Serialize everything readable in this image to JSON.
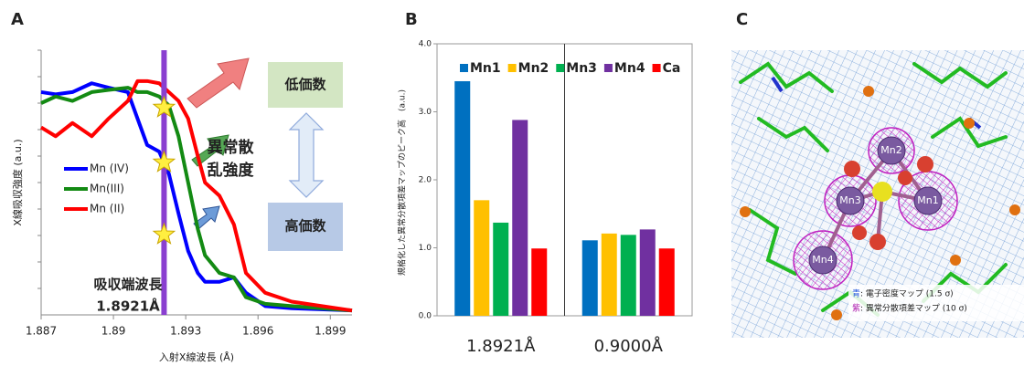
{
  "chart_data": [
    {
      "type": "line",
      "panel_label": "A",
      "x_label": "入射X線波長 (Å)",
      "y_label": "X線吸収強度 (a.u.)",
      "x": [
        1.887,
        1.8876,
        1.8883,
        1.8891,
        1.8898,
        1.8906,
        1.891,
        1.8914,
        1.8919,
        1.8923,
        1.8927,
        1.8931,
        1.8935,
        1.8938,
        1.8944,
        1.895,
        1.8955,
        1.8963,
        1.8974,
        1.8999
      ],
      "xlim": [
        1.887,
        1.8999
      ],
      "xticks": [
        1.887,
        1.89,
        1.893,
        1.896,
        1.899
      ],
      "ylim": [
        0,
        1.2
      ],
      "series": [
        {
          "name": "Mn (IV)",
          "color": "#0000ff",
          "values": [
            1.01,
            1.0,
            1.01,
            1.05,
            1.03,
            1.01,
            0.89,
            0.77,
            0.74,
            0.64,
            0.46,
            0.29,
            0.19,
            0.15,
            0.15,
            0.17,
            0.1,
            0.04,
            0.03,
            0.02
          ]
        },
        {
          "name": "Mn(III)",
          "color": "#138a13",
          "values": [
            0.96,
            0.99,
            0.97,
            1.01,
            1.02,
            1.03,
            1.01,
            1.01,
            0.99,
            0.95,
            0.81,
            0.6,
            0.39,
            0.27,
            0.19,
            0.17,
            0.08,
            0.05,
            0.04,
            0.02
          ]
        },
        {
          "name": "Mn (II)",
          "color": "#ff0000",
          "values": [
            0.85,
            0.81,
            0.87,
            0.81,
            0.89,
            0.97,
            1.06,
            1.06,
            1.05,
            1.01,
            0.97,
            0.89,
            0.72,
            0.6,
            0.54,
            0.41,
            0.19,
            0.1,
            0.06,
            0.02
          ]
        }
      ],
      "edge_x": 1.8921,
      "edge_title": "吸収端波長",
      "edge_label": "1.8921Å",
      "low_label": "低価数",
      "high_label": "高価数",
      "anomalous_label": [
        "異常散",
        "乱強度"
      ]
    },
    {
      "type": "bar",
      "panel_label": "B",
      "y_label": "規格化した異常分散項差マップのピーク高　(a.u.)",
      "categories": [
        "1.8921Å",
        "0.9000Å"
      ],
      "series": [
        {
          "name": "Mn1",
          "color": "#0070c0",
          "values": [
            3.45,
            1.11
          ]
        },
        {
          "name": "Mn2",
          "color": "#ffc000",
          "values": [
            1.7,
            1.21
          ]
        },
        {
          "name": "Mn3",
          "color": "#00b050",
          "values": [
            1.37,
            1.19
          ]
        },
        {
          "name": "Mn4",
          "color": "#7030a0",
          "values": [
            2.88,
            1.27
          ]
        },
        {
          "name": "Ca",
          "color": "#ff0000",
          "values": [
            0.99,
            0.99
          ]
        }
      ],
      "ylim": [
        0,
        4.0
      ],
      "yticks": [
        {
          "value": 0,
          "label": "0.0"
        },
        {
          "value": 1,
          "label": "1.0"
        },
        {
          "value": 2,
          "label": "2.0"
        },
        {
          "value": 3,
          "label": "3.0"
        },
        {
          "value": 4,
          "label": "4.0"
        }
      ]
    }
  ],
  "image_panel": {
    "panel_label": "C",
    "atoms": [
      "Mn1",
      "Mn2",
      "Mn3",
      "Mn4"
    ],
    "legend": [
      {
        "key": "青",
        "text": ": 電子密度マップ (1.5 σ)"
      },
      {
        "key": "紫",
        "text": ": 異常分散項差マップ (10 σ)"
      }
    ]
  }
}
